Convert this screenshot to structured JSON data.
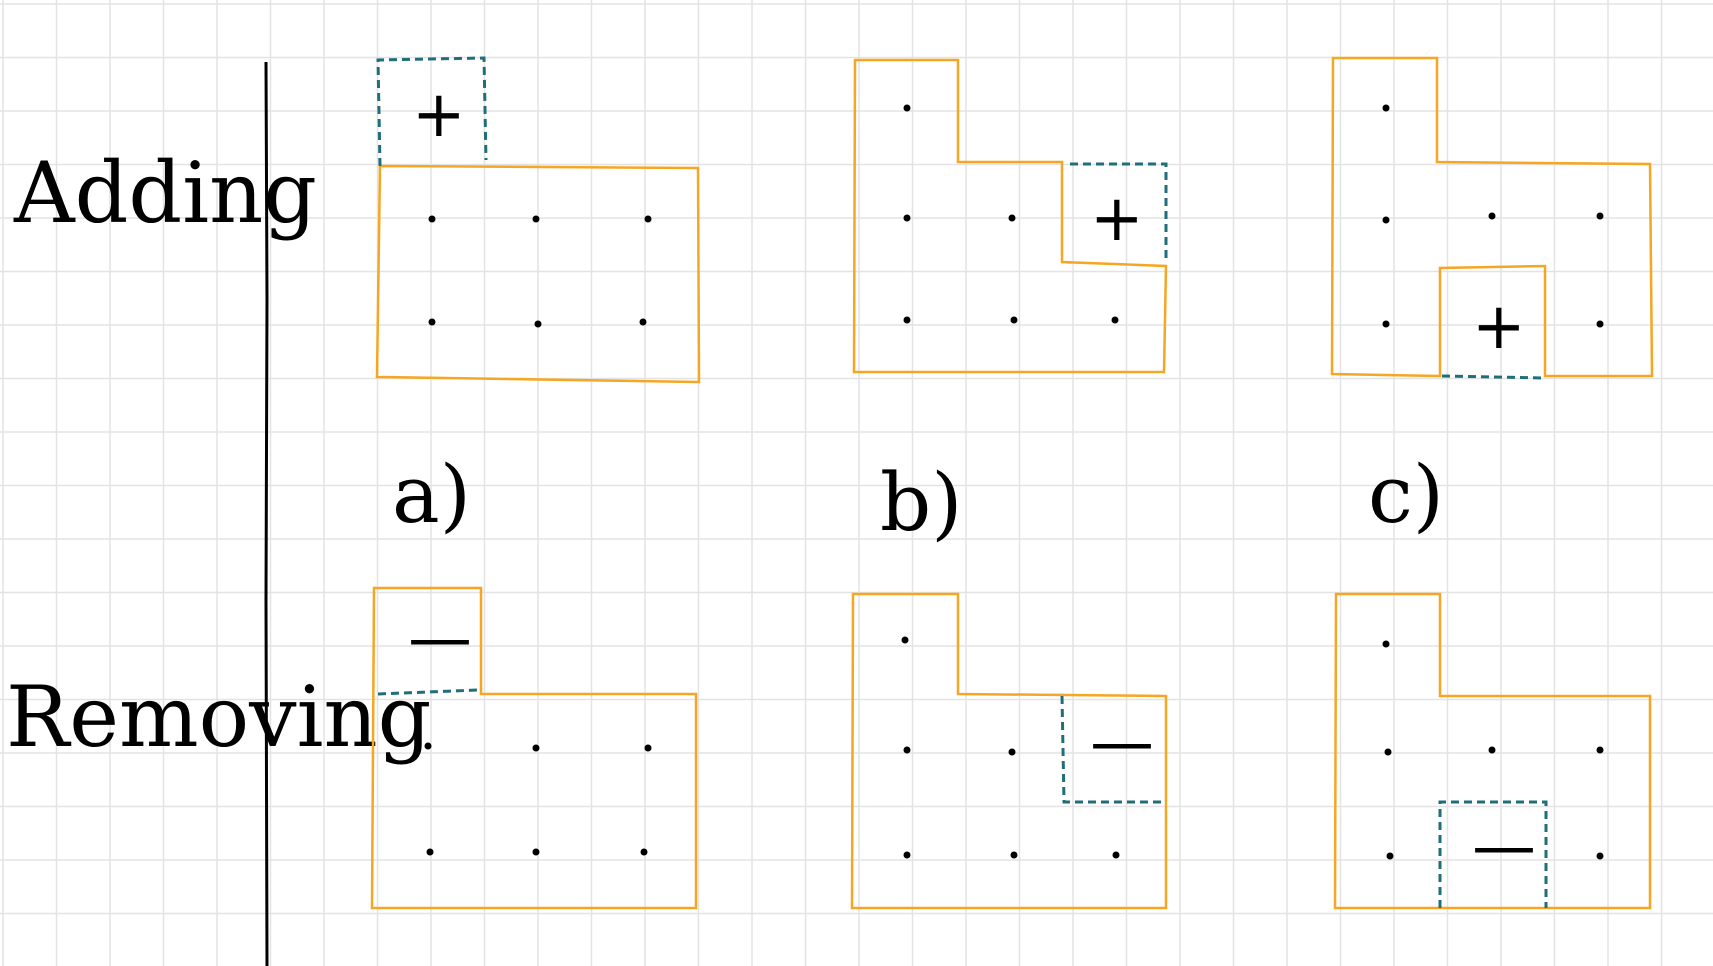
{
  "rows": [
    {
      "label": "Adding"
    },
    {
      "label": "Removing"
    }
  ],
  "panels": [
    {
      "label": "a)"
    },
    {
      "label": "b)"
    },
    {
      "label": "c)"
    }
  ],
  "signs": {
    "add": "+",
    "remove": "—"
  },
  "colors": {
    "shape_outline": "#F5A623",
    "changed_cell": "#1F6E7A",
    "grid": "#E3E3E3",
    "ink": "#000000"
  }
}
